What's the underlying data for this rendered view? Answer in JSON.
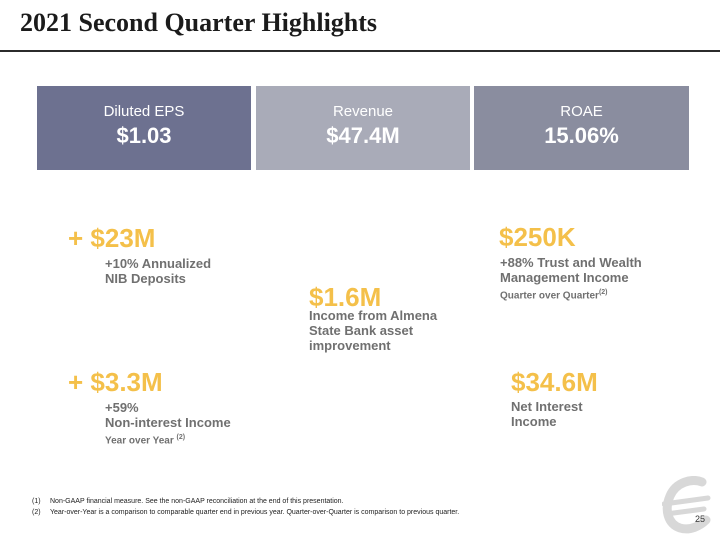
{
  "title": "2021 Second Quarter Highlights",
  "colors": {
    "accent": "#f4c04a",
    "box1": "#6d7190",
    "box2": "#a9abb8",
    "box3": "#8a8d9f",
    "desc": "#707070"
  },
  "boxes": [
    {
      "label": "Diluted EPS",
      "value": "$1.03"
    },
    {
      "label": "Revenue",
      "value": "$47.4M"
    },
    {
      "label": "ROAE",
      "value": "15.06%"
    }
  ],
  "highlights": {
    "nib": {
      "value": "+ $23M",
      "line1": "+10% Annualized",
      "line2": "NIB Deposits"
    },
    "almena": {
      "value": "$1.6M",
      "line1": "Income from Almena",
      "line2": "State Bank asset",
      "line3": "improvement"
    },
    "trust": {
      "value": "$250K",
      "line1": "+88% Trust and Wealth",
      "line2": "Management Income",
      "line3": "Quarter over Quarter",
      "sup": "(2)"
    },
    "nonint": {
      "value": "+ $3.3M",
      "line1": "+59%",
      "line2": "Non-interest Income",
      "line3": "Year over Year ",
      "sup": "(2)"
    },
    "nii": {
      "value": "$34.6M",
      "line1": "Net Interest",
      "line2": "Income"
    }
  },
  "footnotes": [
    {
      "num": "(1)",
      "text": "Non-GAAP financial measure. See the non-GAAP reconciliation at the end of this presentation."
    },
    {
      "num": "(2)",
      "text": "Year-over-Year is a comparison to comparable quarter end in previous year.  Quarter-over-Quarter is comparison to previous quarter."
    }
  ],
  "page_number": "25",
  "logo_icon": "company-e-logo-icon"
}
